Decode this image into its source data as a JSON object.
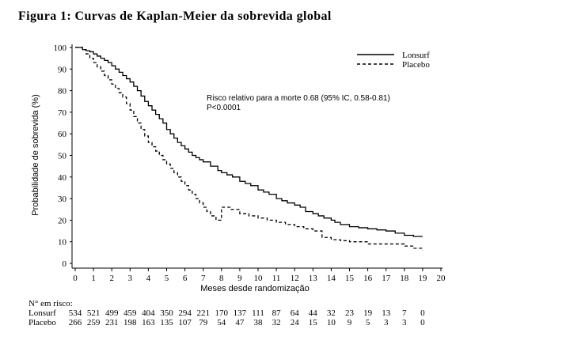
{
  "figure_title": "Figura 1: Curvas de Kaplan-Meier da sobrevida global",
  "chart_data": {
    "type": "line",
    "step": true,
    "xlabel": "Meses desde randomização",
    "ylabel": "Probabilidade de sobrevida (%)",
    "xlim": [
      0,
      20
    ],
    "ylim": [
      0,
      100
    ],
    "xticks": [
      0,
      1,
      2,
      3,
      4,
      5,
      6,
      7,
      8,
      9,
      10,
      11,
      12,
      13,
      14,
      15,
      16,
      17,
      18,
      19,
      20
    ],
    "yticks": [
      0,
      10,
      20,
      30,
      40,
      50,
      60,
      70,
      80,
      90,
      100
    ],
    "grid": false,
    "legend_position": "top-right",
    "series": [
      {
        "name": "Lonsurf",
        "style": "solid",
        "x": [
          0,
          0.4,
          0.6,
          0.8,
          1.0,
          1.2,
          1.4,
          1.6,
          1.8,
          2.0,
          2.2,
          2.4,
          2.6,
          2.8,
          3.0,
          3.2,
          3.4,
          3.6,
          3.8,
          4.0,
          4.2,
          4.4,
          4.6,
          4.8,
          5.0,
          5.2,
          5.4,
          5.6,
          5.8,
          6.0,
          6.2,
          6.4,
          6.6,
          6.8,
          7.0,
          7.4,
          7.8,
          8.0,
          8.3,
          8.6,
          9.0,
          9.3,
          9.6,
          10.0,
          10.3,
          10.6,
          11.0,
          11.3,
          11.6,
          12.0,
          12.3,
          12.6,
          13.0,
          13.3,
          13.6,
          14.0,
          14.2,
          14.5,
          15.0,
          15.5,
          16.0,
          16.5,
          17.0,
          17.5,
          18.0,
          18.5,
          19.0
        ],
        "y": [
          100,
          99,
          98.5,
          98,
          97,
          96,
          95,
          94,
          93,
          91.5,
          90,
          88.5,
          87,
          85.5,
          84,
          82,
          80,
          77.5,
          75,
          73,
          71,
          69,
          67,
          65,
          62,
          60,
          58,
          56,
          54.5,
          53,
          51.5,
          50,
          49,
          48,
          47,
          45,
          43,
          42,
          41,
          40,
          38,
          37,
          36,
          34,
          33,
          32,
          30,
          29,
          28,
          27,
          26,
          24,
          23,
          22,
          21,
          20,
          19,
          18,
          17,
          16.5,
          16,
          15.5,
          15,
          14,
          13,
          12.5,
          12.5
        ]
      },
      {
        "name": "Placebo",
        "style": "dashed",
        "x": [
          0,
          0.4,
          0.6,
          0.8,
          1.0,
          1.2,
          1.4,
          1.6,
          1.8,
          2.0,
          2.2,
          2.4,
          2.6,
          2.8,
          3.0,
          3.2,
          3.4,
          3.6,
          3.8,
          4.0,
          4.2,
          4.4,
          4.6,
          4.8,
          5.0,
          5.2,
          5.4,
          5.6,
          5.8,
          6.0,
          6.2,
          6.4,
          6.6,
          6.8,
          7.0,
          7.2,
          7.4,
          7.7,
          8.0,
          8.5,
          9.0,
          9.5,
          10.0,
          10.5,
          11.0,
          11.5,
          12.0,
          12.5,
          13.0,
          13.5,
          14.0,
          14.5,
          15.0,
          15.5,
          16.0,
          16.5,
          17.0,
          17.5,
          18.0,
          18.5,
          19.0
        ],
        "y": [
          100,
          99,
          97,
          95,
          93,
          91,
          89,
          87,
          85,
          83,
          81,
          79,
          77,
          74,
          71,
          68,
          65,
          62,
          59,
          56,
          54,
          52,
          50,
          48,
          46,
          44,
          42,
          40,
          38,
          36,
          34,
          32,
          30,
          28,
          26,
          24,
          22,
          20,
          26,
          25,
          23,
          22,
          21,
          20,
          19,
          18,
          17,
          16,
          15,
          12,
          11,
          10.5,
          10,
          10,
          9,
          9,
          9,
          9,
          8,
          7,
          6
        ]
      }
    ],
    "annotation": {
      "line1": "Risco relativo para a morte 0.68 (95% IC, 0.58-0.81)",
      "line2": "P<0.0001"
    },
    "risk_table": {
      "header": "N° em risco:",
      "rows": [
        {
          "label": "Lonsurf",
          "values": [
            "534",
            "521",
            "499",
            "459",
            "404",
            "350",
            "294",
            "221",
            "170",
            "137",
            "111",
            "87",
            "64",
            "44",
            "32",
            "23",
            "19",
            "13",
            "7",
            "0"
          ]
        },
        {
          "label": "Placebo",
          "values": [
            "266",
            "259",
            "231",
            "198",
            "163",
            "135",
            "107",
            "79",
            "54",
            "47",
            "38",
            "32",
            "24",
            "15",
            "10",
            "9",
            "5",
            "3",
            "3",
            "0"
          ]
        }
      ]
    }
  }
}
